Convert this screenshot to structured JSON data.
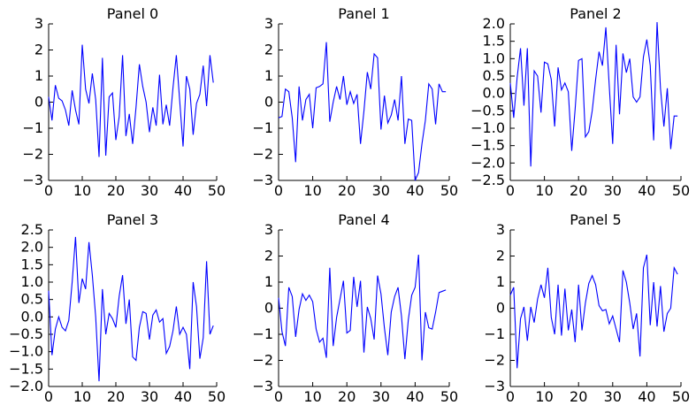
{
  "chart_data": [
    {
      "type": "line",
      "title": "Panel 0",
      "xlim": [
        0,
        50
      ],
      "ylim": [
        -3,
        3
      ],
      "xticks": [
        0,
        10,
        20,
        30,
        40,
        50
      ],
      "xtick_labels": [
        "0",
        "10",
        "20",
        "30",
        "40",
        "50"
      ],
      "yticks": [
        -3,
        -2,
        -1,
        0,
        1,
        2,
        3
      ],
      "ytick_labels": [
        "−3",
        "−2",
        "−1",
        "0",
        "1",
        "2",
        "3"
      ],
      "series": [
        {
          "color": "#0000ff",
          "x": [
            0,
            1,
            2,
            3,
            4,
            5,
            6,
            7,
            8,
            9,
            10,
            11,
            12,
            13,
            14,
            15,
            16,
            17,
            18,
            19,
            20,
            21,
            22,
            23,
            24,
            25,
            26,
            27,
            28,
            29,
            30,
            31,
            32,
            33,
            34,
            35,
            36,
            37,
            38,
            39,
            40,
            41,
            42,
            43,
            44,
            45,
            46,
            47,
            48,
            49
          ],
          "y": [
            0.2,
            -0.7,
            0.65,
            0.15,
            0.05,
            -0.3,
            -0.9,
            0.45,
            -0.3,
            -0.85,
            2.2,
            0.5,
            -0.05,
            1.1,
            0.1,
            -2.1,
            1.7,
            -2.05,
            0.2,
            0.35,
            -1.45,
            -0.55,
            1.8,
            -1.3,
            -0.45,
            -1.6,
            -0.2,
            1.45,
            0.6,
            0,
            -1.15,
            -0.2,
            -0.9,
            1.05,
            -0.85,
            -0.1,
            -0.9,
            0.55,
            1.8,
            0.05,
            -1.7,
            1.0,
            0.5,
            -1.25,
            -0.05,
            0.3,
            1.4,
            -0.15,
            1.8,
            0.75
          ]
        }
      ]
    },
    {
      "type": "line",
      "title": "Panel 1",
      "xlim": [
        0,
        50
      ],
      "ylim": [
        -3,
        3
      ],
      "xticks": [
        0,
        10,
        20,
        30,
        40,
        50
      ],
      "xtick_labels": [
        "0",
        "10",
        "20",
        "30",
        "40",
        "50"
      ],
      "yticks": [
        -3,
        -2,
        -1,
        0,
        1,
        2,
        3
      ],
      "ytick_labels": [
        "−3",
        "−2",
        "−1",
        "0",
        "1",
        "2",
        "3"
      ],
      "series": [
        {
          "color": "#0000ff",
          "x": [
            0,
            1,
            2,
            3,
            4,
            5,
            6,
            7,
            8,
            9,
            10,
            11,
            12,
            13,
            14,
            15,
            16,
            17,
            18,
            19,
            20,
            21,
            22,
            23,
            24,
            25,
            26,
            27,
            28,
            29,
            30,
            31,
            32,
            33,
            34,
            35,
            36,
            37,
            38,
            39,
            40,
            41,
            42,
            43,
            44,
            45,
            46,
            47,
            48,
            49
          ],
          "y": [
            -0.6,
            -0.55,
            0.5,
            0.4,
            -0.6,
            -2.3,
            0.6,
            -0.7,
            0.1,
            0.3,
            -1.0,
            0.55,
            0.6,
            0.7,
            2.3,
            -0.75,
            0,
            0.6,
            0.1,
            1.0,
            -0.1,
            0.4,
            -0.05,
            0.3,
            -1.6,
            -0.35,
            1.15,
            0.5,
            1.85,
            1.7,
            -1.05,
            0.25,
            -0.8,
            -0.5,
            0.1,
            -0.7,
            1.0,
            -1.6,
            -0.65,
            -0.7,
            -3.0,
            -2.7,
            -1.6,
            -0.7,
            0.7,
            0.5,
            -0.85,
            0.7,
            0.4,
            0.4
          ]
        }
      ]
    },
    {
      "type": "line",
      "title": "Panel 2",
      "xlim": [
        0,
        50
      ],
      "ylim": [
        -2.5,
        2.0
      ],
      "xticks": [
        0,
        10,
        20,
        30,
        40,
        50
      ],
      "xtick_labels": [
        "0",
        "10",
        "20",
        "30",
        "40",
        "50"
      ],
      "yticks": [
        -2.5,
        -2.0,
        -1.5,
        -1.0,
        -0.5,
        0.0,
        0.5,
        1.0,
        1.5,
        2.0
      ],
      "ytick_labels": [
        "−2.5",
        "−2.0",
        "−1.5",
        "−1.0",
        "−0.5",
        "0.0",
        "0.5",
        "1.0",
        "1.5",
        "2.0"
      ],
      "series": [
        {
          "color": "#0000ff",
          "x": [
            0,
            1,
            2,
            3,
            4,
            5,
            6,
            7,
            8,
            9,
            10,
            11,
            12,
            13,
            14,
            15,
            16,
            17,
            18,
            19,
            20,
            21,
            22,
            23,
            24,
            25,
            26,
            27,
            28,
            29,
            30,
            31,
            32,
            33,
            34,
            35,
            36,
            37,
            38,
            39,
            40,
            41,
            42,
            43,
            44,
            45,
            46,
            47,
            48,
            49
          ],
          "y": [
            0.3,
            -0.7,
            0.45,
            1.3,
            -0.35,
            1.3,
            -2.1,
            0.65,
            0.5,
            -0.55,
            0.9,
            0.85,
            0.4,
            -0.95,
            0.75,
            0.1,
            0.3,
            0.05,
            -1.65,
            -0.45,
            0.95,
            1.0,
            -1.25,
            -1.1,
            -0.5,
            0.4,
            1.2,
            0.8,
            1.9,
            0.2,
            -1.45,
            1.4,
            -0.6,
            1.15,
            0.6,
            1.0,
            -0.1,
            -0.25,
            -0.1,
            1.05,
            1.55,
            0.8,
            -1.35,
            2.05,
            0.15,
            -0.95,
            0.15,
            -1.6,
            -0.65,
            -0.65
          ]
        }
      ]
    },
    {
      "type": "line",
      "title": "Panel 3",
      "xlim": [
        0,
        50
      ],
      "ylim": [
        -2.0,
        2.5
      ],
      "xticks": [
        0,
        10,
        20,
        30,
        40,
        50
      ],
      "xtick_labels": [
        "0",
        "10",
        "20",
        "30",
        "40",
        "50"
      ],
      "yticks": [
        -2.0,
        -1.5,
        -1.0,
        -0.5,
        0.0,
        0.5,
        1.0,
        1.5,
        2.0,
        2.5
      ],
      "ytick_labels": [
        "−2.0",
        "−1.5",
        "−1.0",
        "−0.5",
        "0.0",
        "0.5",
        "1.0",
        "1.5",
        "2.0",
        "2.5"
      ],
      "series": [
        {
          "color": "#0000ff",
          "x": [
            0,
            1,
            2,
            3,
            4,
            5,
            6,
            7,
            8,
            9,
            10,
            11,
            12,
            13,
            14,
            15,
            16,
            17,
            18,
            19,
            20,
            21,
            22,
            23,
            24,
            25,
            26,
            27,
            28,
            29,
            30,
            31,
            32,
            33,
            34,
            35,
            36,
            37,
            38,
            39,
            40,
            41,
            42,
            43,
            44,
            45,
            46,
            47,
            48,
            49
          ],
          "y": [
            0.75,
            -1.1,
            -0.35,
            0,
            -0.3,
            -0.4,
            -0.1,
            1.0,
            2.3,
            0.4,
            1.1,
            0.8,
            2.15,
            1.2,
            0,
            -1.85,
            0.8,
            -0.5,
            0.1,
            -0.05,
            -0.3,
            0.6,
            1.2,
            -0.2,
            0.5,
            -1.15,
            -1.25,
            -0.3,
            0.15,
            0.1,
            -0.65,
            0.05,
            0.2,
            -0.15,
            -0.05,
            -1.05,
            -0.85,
            -0.4,
            0.3,
            -0.5,
            -0.3,
            -0.5,
            -1.5,
            1.0,
            0.3,
            -1.2,
            -0.6,
            1.6,
            -0.5,
            -0.25
          ]
        }
      ]
    },
    {
      "type": "line",
      "title": "Panel 4",
      "xlim": [
        0,
        50
      ],
      "ylim": [
        -3,
        3
      ],
      "xticks": [
        0,
        10,
        20,
        30,
        40,
        50
      ],
      "xtick_labels": [
        "0",
        "10",
        "20",
        "30",
        "40",
        "50"
      ],
      "yticks": [
        -3,
        -2,
        -1,
        0,
        1,
        2,
        3
      ],
      "ytick_labels": [
        "−3",
        "−2",
        "−1",
        "0",
        "1",
        "2",
        "3"
      ],
      "series": [
        {
          "color": "#0000ff",
          "x": [
            0,
            1,
            2,
            3,
            4,
            5,
            6,
            7,
            8,
            9,
            10,
            11,
            12,
            13,
            14,
            15,
            16,
            17,
            18,
            19,
            20,
            21,
            22,
            23,
            24,
            25,
            26,
            27,
            28,
            29,
            30,
            31,
            32,
            33,
            34,
            35,
            36,
            37,
            38,
            39,
            40,
            41,
            42,
            43,
            44,
            45,
            46,
            47,
            48,
            49
          ],
          "y": [
            0.4,
            -0.9,
            -1.45,
            0.8,
            0.45,
            -1.1,
            -0.05,
            0.55,
            0.3,
            0.5,
            0.25,
            -0.8,
            -1.3,
            -1.15,
            -1.9,
            1.55,
            -1.45,
            -0.35,
            0.35,
            1.05,
            -0.95,
            -0.85,
            1.2,
            0.05,
            1.05,
            -1.7,
            0.05,
            -0.4,
            -1.2,
            1.25,
            0.55,
            -0.75,
            -1.8,
            -0.15,
            0.45,
            0.8,
            -0.3,
            -1.95,
            -0.45,
            0.5,
            0.8,
            2.05,
            -2.0,
            -0.15,
            -0.75,
            -0.8,
            -0.15,
            0.6,
            0.65,
            0.7
          ]
        }
      ]
    },
    {
      "type": "line",
      "title": "Panel 5",
      "xlim": [
        0,
        50
      ],
      "ylim": [
        -3,
        3
      ],
      "xticks": [
        0,
        10,
        20,
        30,
        40,
        50
      ],
      "xtick_labels": [
        "0",
        "10",
        "20",
        "30",
        "40",
        "50"
      ],
      "yticks": [
        -3,
        -2,
        -1,
        0,
        1,
        2,
        3
      ],
      "ytick_labels": [
        "−3",
        "−2",
        "−1",
        "0",
        "1",
        "2",
        "3"
      ],
      "series": [
        {
          "color": "#0000ff",
          "x": [
            0,
            1,
            2,
            3,
            4,
            5,
            6,
            7,
            8,
            9,
            10,
            11,
            12,
            13,
            14,
            15,
            16,
            17,
            18,
            19,
            20,
            21,
            22,
            23,
            24,
            25,
            26,
            27,
            28,
            29,
            30,
            31,
            32,
            33,
            34,
            35,
            36,
            37,
            38,
            39,
            40,
            41,
            42,
            43,
            44,
            45,
            46,
            47,
            48,
            49
          ],
          "y": [
            0.5,
            0.8,
            -2.3,
            -0.4,
            0.05,
            -1.25,
            0.05,
            -0.55,
            0.35,
            0.9,
            0.4,
            1.55,
            -0.35,
            -1.0,
            0.9,
            -1.05,
            0.75,
            -0.85,
            -0.05,
            -1.3,
            0.9,
            -0.85,
            0.2,
            0.95,
            1.25,
            0.9,
            0.1,
            -0.1,
            -0.05,
            -0.6,
            -0.3,
            -0.8,
            -1.3,
            1.45,
            1.0,
            0.2,
            -0.8,
            -0.2,
            -1.85,
            1.55,
            2.05,
            -0.65,
            1.0,
            -0.7,
            0.85,
            -0.9,
            -0.2,
            0,
            1.55,
            1.3
          ]
        }
      ]
    }
  ]
}
